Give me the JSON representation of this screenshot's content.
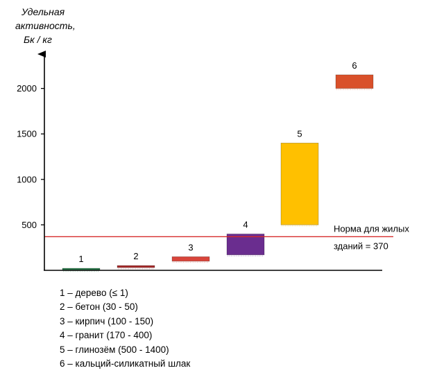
{
  "chart_data": {
    "type": "floating-bar",
    "ylabel": [
      "Удельная",
      "активность,",
      "Бк / кг"
    ],
    "yticks": [
      500,
      1000,
      1500,
      2000
    ],
    "ylim": [
      0,
      2400
    ],
    "categories": [
      "1",
      "2",
      "3",
      "4",
      "5",
      "6"
    ],
    "bars": [
      {
        "label": "1",
        "low": 0,
        "high": 1,
        "color": "#2e7d4f"
      },
      {
        "label": "2",
        "low": 30,
        "high": 50,
        "color": "#a52a2a"
      },
      {
        "label": "3",
        "low": 100,
        "high": 150,
        "color": "#d9453b"
      },
      {
        "label": "4",
        "low": 170,
        "high": 400,
        "color": "#6a2d8f"
      },
      {
        "label": "5",
        "low": 500,
        "high": 1400,
        "color": "#ffc000"
      },
      {
        "label": "6",
        "low": 2000,
        "high": 2150,
        "color": "#d9502a"
      }
    ],
    "reference_line": {
      "value": 370,
      "color": "#d62a2a",
      "label": [
        "Норма для жилых",
        "зданий = 370"
      ]
    },
    "legend": [
      "1 – дерево (≤ 1)",
      "2 – бетон (30 - 50)",
      "3 – кирпич (100 - 150)",
      "4 – гранит (170 - 400)",
      "5 – глинозём (500 - 1400)",
      "6 – кальций-силикатный шлак"
    ]
  }
}
